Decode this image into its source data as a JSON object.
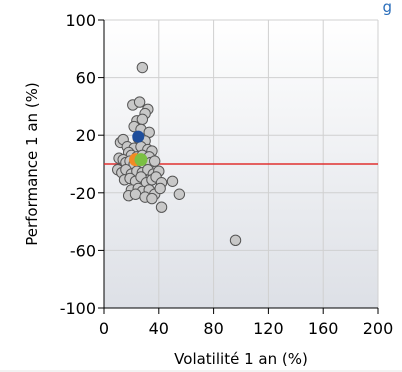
{
  "chart_data": {
    "type": "scatter",
    "title_fragment": "g",
    "xlabel": "Volatilité 1 an (%)",
    "ylabel": "Performance 1 an (%)",
    "xlim": [
      0,
      200
    ],
    "ylim": [
      -100,
      100
    ],
    "x_ticks": [
      0,
      40,
      80,
      120,
      160,
      200
    ],
    "y_ticks": [
      -100,
      -60,
      -20,
      20,
      60,
      100
    ],
    "y_tick_labels": [
      "-100",
      "-60",
      "-20",
      "20",
      "60",
      "100"
    ],
    "grid": true,
    "reference_line": {
      "y": 0,
      "color": "#e03030"
    },
    "colors": {
      "points": "#c8c8c8",
      "points_edge": "#555555",
      "highlight_blue": "#1f4e9c",
      "highlight_green": "#7bc043",
      "highlight_orange": "#f08a24",
      "plot_bg_top": "#ffffff",
      "plot_bg_bottom": "#dde0e6",
      "grid": "#d0d0d0",
      "title": "#2a6ebb"
    },
    "series": [
      {
        "role": "funds",
        "points": [
          [
            28,
            67
          ],
          [
            21,
            41
          ],
          [
            26,
            43
          ],
          [
            32,
            38
          ],
          [
            30,
            35
          ],
          [
            24,
            30
          ],
          [
            28,
            31
          ],
          [
            22,
            26
          ],
          [
            27,
            24
          ],
          [
            33,
            22
          ],
          [
            25,
            18
          ],
          [
            30,
            16
          ],
          [
            12,
            15
          ],
          [
            14,
            17
          ],
          [
            17,
            12
          ],
          [
            22,
            11
          ],
          [
            27,
            12
          ],
          [
            32,
            10
          ],
          [
            35,
            9
          ],
          [
            18,
            8
          ],
          [
            20,
            6
          ],
          [
            24,
            5
          ],
          [
            28,
            6
          ],
          [
            33,
            5
          ],
          [
            11,
            4
          ],
          [
            14,
            3
          ],
          [
            16,
            1
          ],
          [
            19,
            2
          ],
          [
            22,
            0
          ],
          [
            26,
            1
          ],
          [
            30,
            -1
          ],
          [
            34,
            1
          ],
          [
            37,
            2
          ],
          [
            10,
            -4
          ],
          [
            13,
            -6
          ],
          [
            16,
            -4
          ],
          [
            20,
            -7
          ],
          [
            24,
            -5
          ],
          [
            28,
            -6
          ],
          [
            32,
            -4
          ],
          [
            36,
            -7
          ],
          [
            40,
            -5
          ],
          [
            15,
            -11
          ],
          [
            19,
            -10
          ],
          [
            23,
            -12
          ],
          [
            27,
            -9
          ],
          [
            31,
            -13
          ],
          [
            35,
            -11
          ],
          [
            38,
            -9
          ],
          [
            42,
            -13
          ],
          [
            50,
            -12
          ],
          [
            20,
            -18
          ],
          [
            25,
            -17
          ],
          [
            28,
            -19
          ],
          [
            33,
            -18
          ],
          [
            37,
            -21
          ],
          [
            41,
            -17
          ],
          [
            55,
            -21
          ],
          [
            18,
            -22
          ],
          [
            23,
            -21
          ],
          [
            30,
            -23
          ],
          [
            35,
            -24
          ],
          [
            42,
            -30
          ],
          [
            96,
            -53
          ]
        ]
      },
      {
        "role": "highlight-blue",
        "points": [
          [
            25,
            19
          ]
        ]
      },
      {
        "role": "highlight-orange",
        "points": [
          [
            23,
            3
          ]
        ]
      },
      {
        "role": "highlight-green",
        "points": [
          [
            27,
            3
          ]
        ]
      }
    ]
  }
}
